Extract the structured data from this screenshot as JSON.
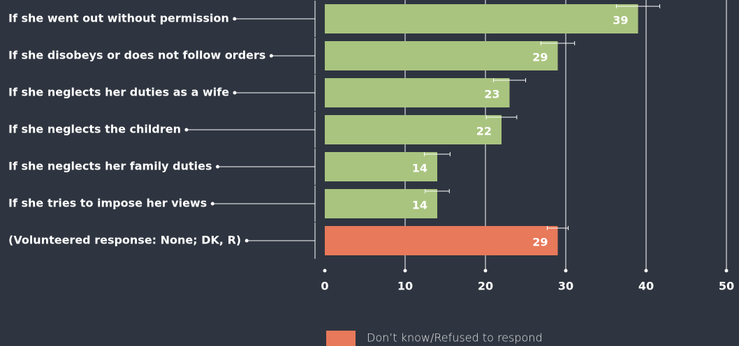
{
  "chart_data": {
    "type": "bar",
    "orientation": "horizontal",
    "categories": [
      "If she went out without permission",
      "If she disobeys or does not follow orders",
      "If she neglects her duties as a wife",
      "If she neglects the children",
      "If she neglects her family duties",
      "If she tries to impose her views",
      "(Volunteered response: None; DK, R)"
    ],
    "values": [
      39,
      29,
      23,
      22,
      14,
      14,
      29
    ],
    "errors": [
      2.7,
      2.1,
      2,
      1.9,
      1.6,
      1.5,
      1.3
    ],
    "colors": [
      "#a9c47f",
      "#a9c47f",
      "#a9c47f",
      "#a9c47f",
      "#a9c47f",
      "#a9c47f",
      "#e8795a"
    ],
    "xlim": [
      0,
      50
    ],
    "xticks": [
      0,
      10,
      20,
      30,
      40,
      50
    ],
    "grid": true,
    "legend": [
      {
        "label": "Don’t know/Refused to respond",
        "color": "#e8795a"
      }
    ]
  }
}
